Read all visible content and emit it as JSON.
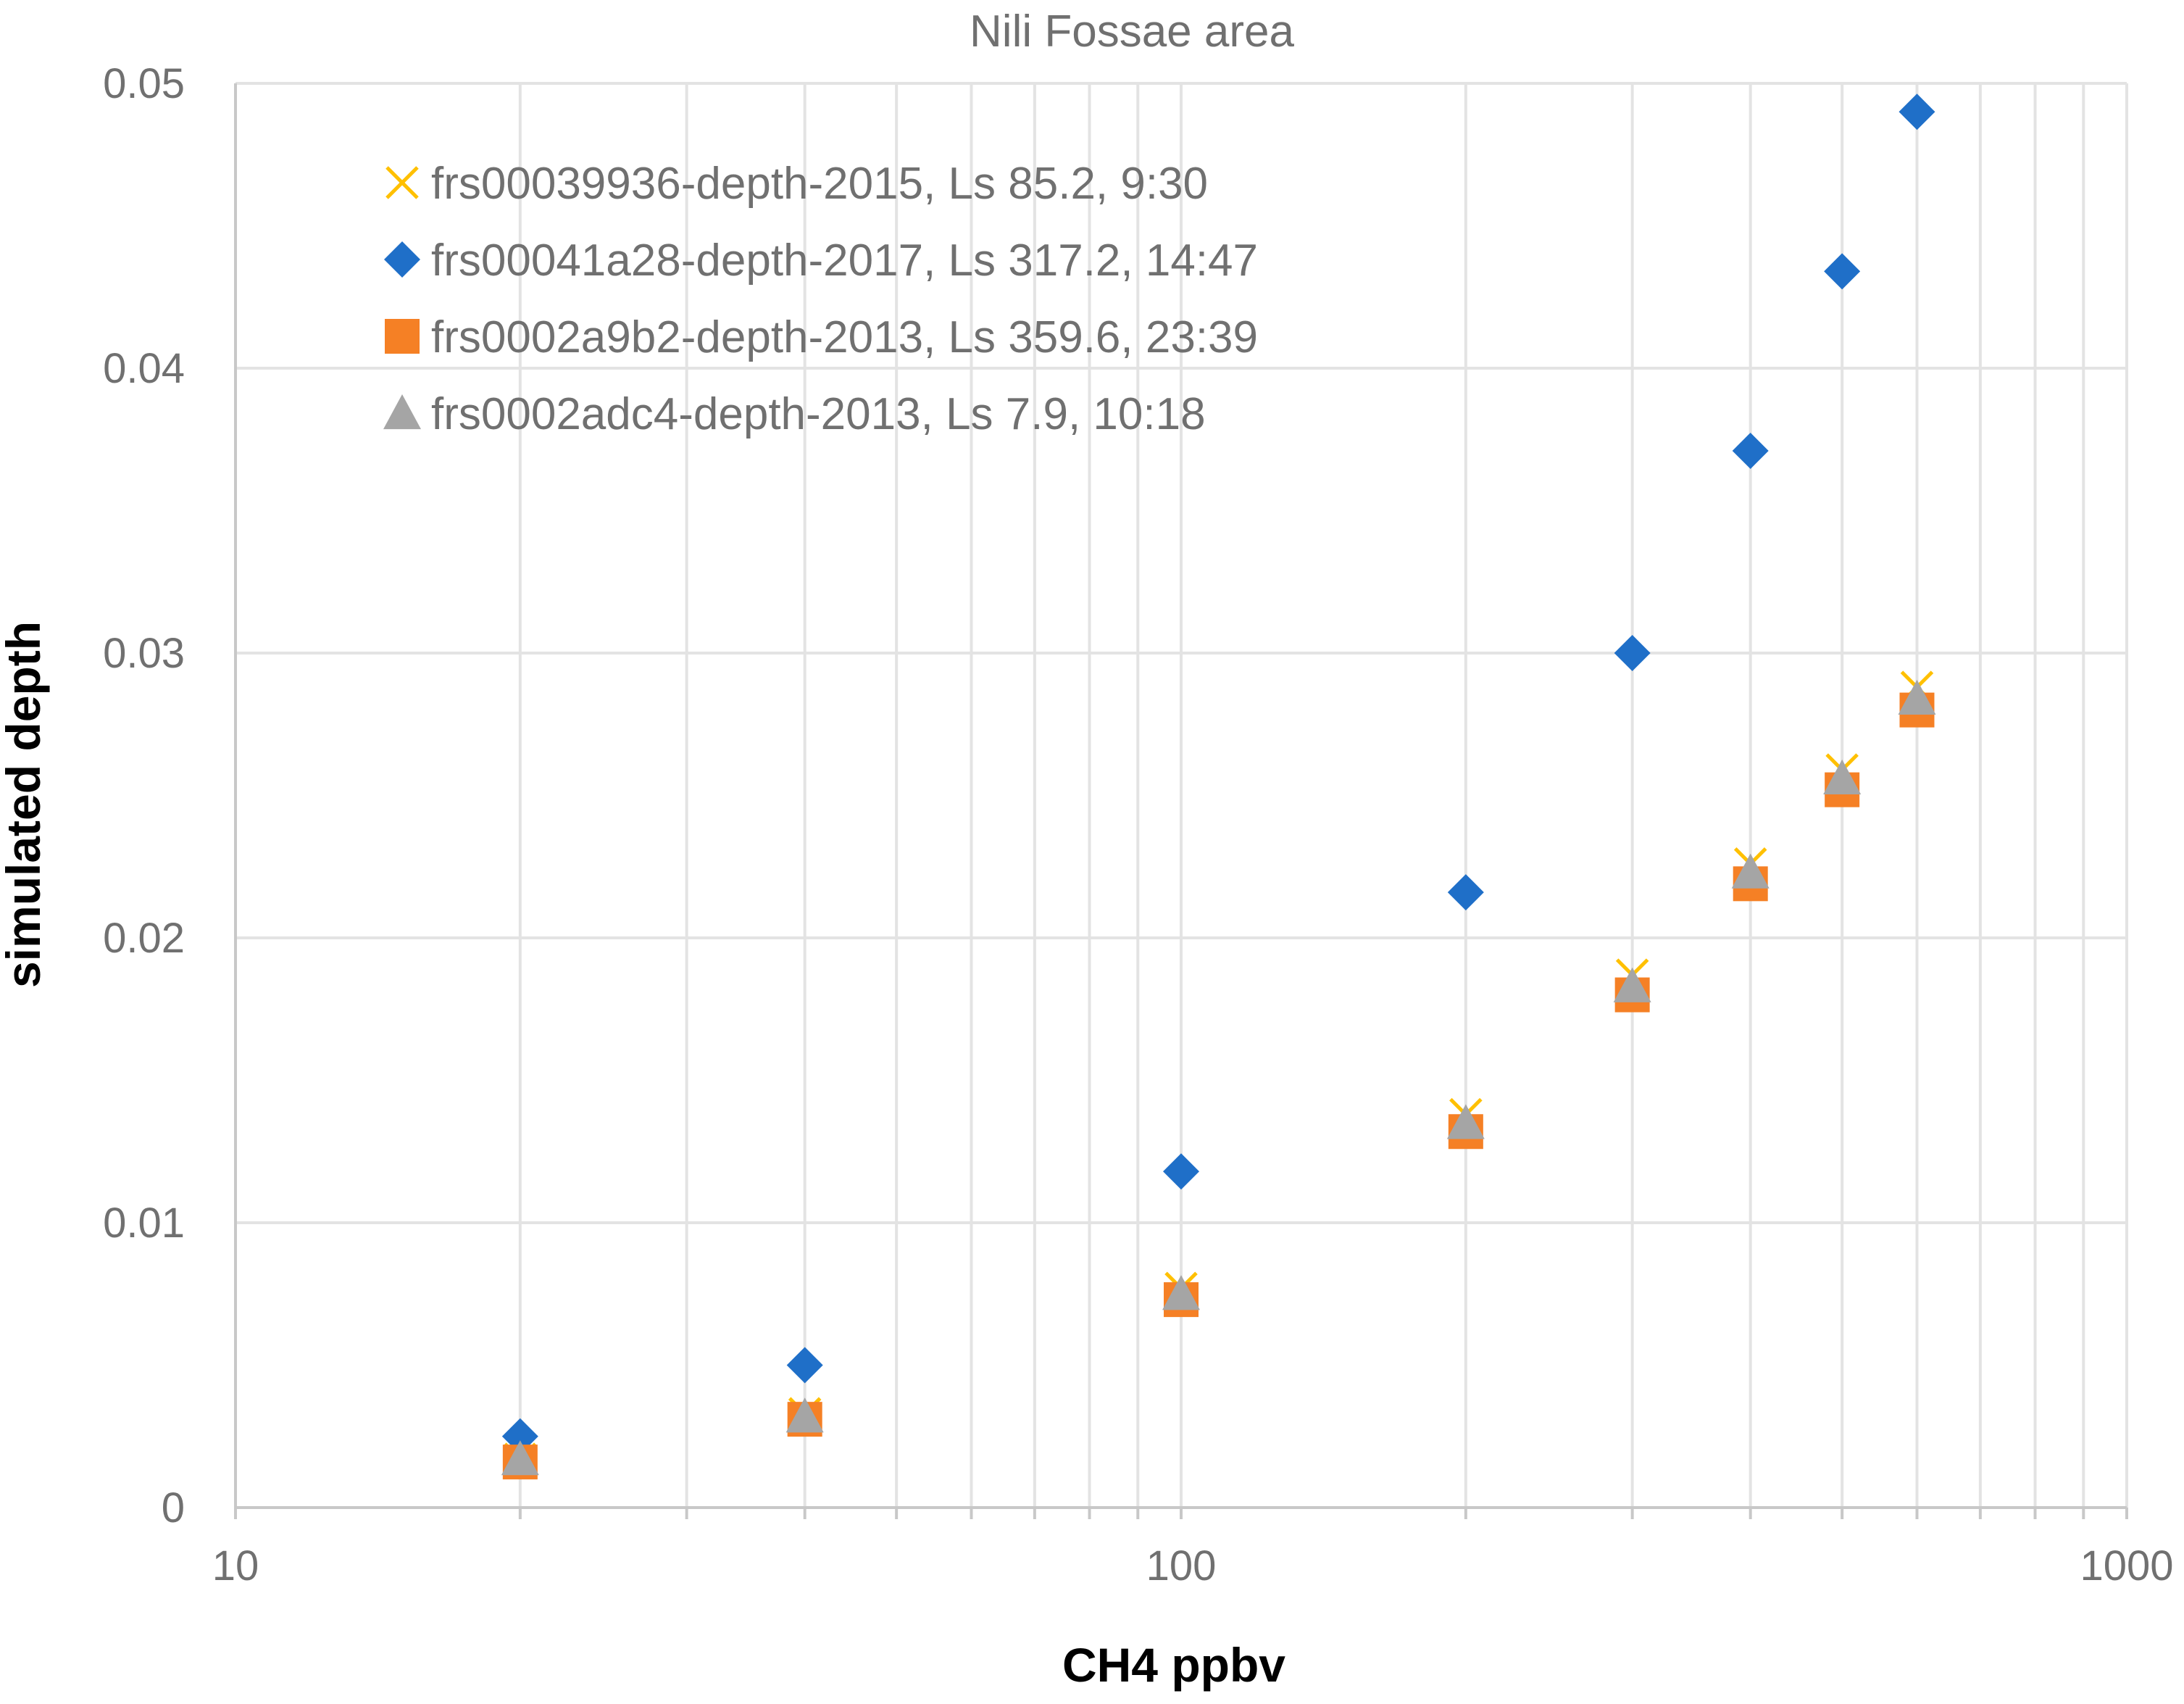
{
  "chart_data": {
    "type": "scatter",
    "title": "Nili Fossae area",
    "xlabel": "CH4 ppbv",
    "ylabel": "simulated depth",
    "xscale": "log",
    "xlim": [
      10,
      1000
    ],
    "ylim": [
      0,
      0.05
    ],
    "x_ticks": [
      10,
      100,
      1000
    ],
    "x_tick_labels": [
      "10",
      "100",
      "1000"
    ],
    "y_ticks": [
      0,
      0.01,
      0.02,
      0.03,
      0.04,
      0.05
    ],
    "y_tick_labels": [
      "0",
      "0.01",
      "0.02",
      "0.03",
      "0.04",
      "0.05"
    ],
    "grid": true,
    "legend_position": "top-left",
    "x": [
      20,
      40,
      100,
      200,
      300,
      400,
      500,
      600
    ],
    "series": [
      {
        "name": "frs00039936-depth-2015, Ls 85.2, 9:30",
        "marker": "x",
        "color": "#FFC000",
        "values": [
          0.0017,
          0.0033,
          0.0077,
          0.0138,
          0.0187,
          0.0226,
          0.0259,
          0.0288
        ]
      },
      {
        "name": "frs00041a28-depth-2017, Ls 317.2, 14:47",
        "marker": "diamond",
        "color": "#1F6FC8",
        "values": [
          0.0025,
          0.005,
          0.0118,
          0.0216,
          0.03,
          0.0371,
          0.0434,
          0.049
        ]
      },
      {
        "name": "frs0002a9b2-depth-2013, Ls 359.6, 23:39",
        "marker": "square",
        "color": "#F58025",
        "values": [
          0.0016,
          0.0031,
          0.0073,
          0.0132,
          0.018,
          0.0219,
          0.0252,
          0.028
        ]
      },
      {
        "name": "frs0002adc4-depth-2013, Ls 7.9, 10:18",
        "marker": "triangle",
        "color": "#A5A5A5",
        "values": [
          0.0017,
          0.0032,
          0.0075,
          0.0135,
          0.0183,
          0.0223,
          0.0256,
          0.0284
        ]
      }
    ]
  }
}
